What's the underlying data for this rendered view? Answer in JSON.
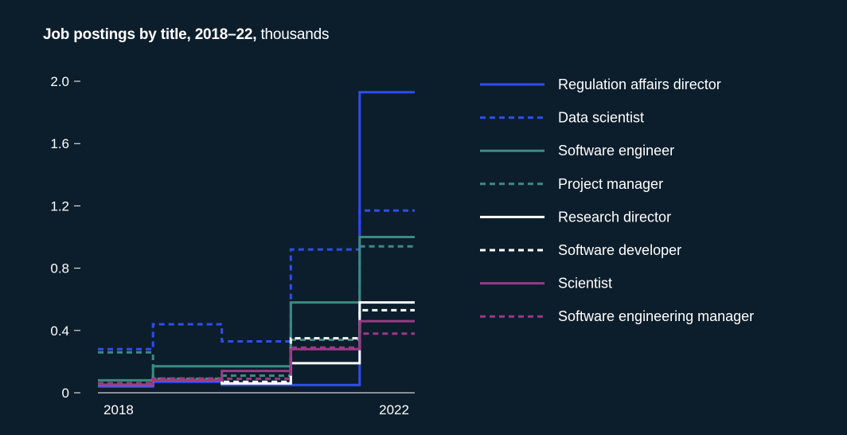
{
  "title": {
    "bold": "Job postings by title, 2018–22,",
    "light": "thousands"
  },
  "colors": {
    "background": "#0c1e2c",
    "axis": "#ffffff"
  },
  "chart_data": {
    "type": "line",
    "step": true,
    "title": "Job postings by title, 2018–22, thousands",
    "x": [
      2018,
      2019,
      2020,
      2021,
      2022
    ],
    "x_tick_labels": [
      {
        "x": 2018,
        "label": "2018"
      },
      {
        "x": 2022,
        "label": "2022"
      }
    ],
    "xlim": [
      2017.7,
      2022.3
    ],
    "ylim": [
      0,
      2.0
    ],
    "y_ticks": [
      0,
      0.4,
      0.8,
      1.2,
      1.6,
      2.0
    ],
    "y_tick_labels": [
      "0",
      "0.4",
      "0.8",
      "1.2",
      "1.6",
      "2.0"
    ],
    "xlabel": "",
    "ylabel": "",
    "legend_position": "right",
    "series": [
      {
        "name": "Regulation affairs director",
        "color": "#2f4df0",
        "dash": "solid",
        "values": [
          0.04,
          0.07,
          0.05,
          0.05,
          1.93
        ]
      },
      {
        "name": "Data scientist",
        "color": "#2f4df0",
        "dash": "dashed",
        "values": [
          0.28,
          0.44,
          0.33,
          0.92,
          1.17
        ]
      },
      {
        "name": "Software engineer",
        "color": "#3e8a80",
        "dash": "solid",
        "values": [
          0.08,
          0.17,
          0.17,
          0.58,
          1.0
        ]
      },
      {
        "name": "Project manager",
        "color": "#3e8a80",
        "dash": "dashed",
        "values": [
          0.26,
          0.09,
          0.11,
          0.34,
          0.94
        ]
      },
      {
        "name": "Research director",
        "color": "#ffffff",
        "dash": "solid",
        "values": [
          0.05,
          0.08,
          0.06,
          0.19,
          0.58
        ]
      },
      {
        "name": "Software developer",
        "color": "#ffffff",
        "dash": "dashed",
        "values": [
          0.06,
          0.09,
          0.07,
          0.35,
          0.53
        ]
      },
      {
        "name": "Scientist",
        "color": "#9a3a85",
        "dash": "solid",
        "values": [
          0.05,
          0.08,
          0.14,
          0.28,
          0.46
        ]
      },
      {
        "name": "Software engineering manager",
        "color": "#9a3a85",
        "dash": "dashed",
        "values": [
          0.06,
          0.09,
          0.09,
          0.29,
          0.38
        ]
      }
    ]
  }
}
